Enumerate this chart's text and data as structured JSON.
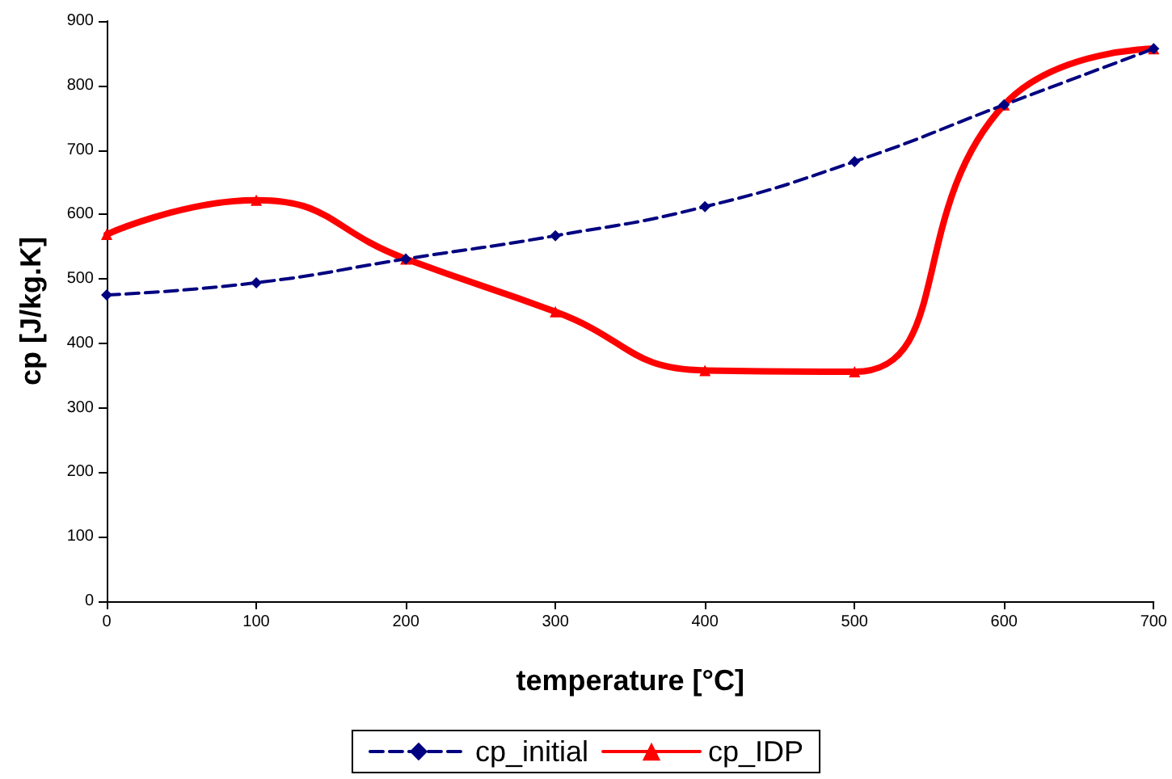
{
  "chart_data": {
    "type": "line",
    "xlabel": "temperature [°C]",
    "ylabel": "cp [J/kg.K]",
    "x": [
      0,
      100,
      200,
      300,
      400,
      500,
      600,
      700
    ],
    "xlim": [
      0,
      700
    ],
    "xticks": [
      0,
      100,
      200,
      300,
      400,
      500,
      600,
      700
    ],
    "ylim": [
      0,
      900
    ],
    "yticks": [
      0,
      100,
      200,
      300,
      400,
      500,
      600,
      700,
      800,
      900
    ],
    "grid": false,
    "legend": "bottom",
    "series": [
      {
        "name": "cp_initial",
        "color": "#000080",
        "marker": "diamond",
        "line_style": "dashed",
        "values": [
          475,
          494,
          531,
          567,
          612,
          682,
          770,
          857
        ]
      },
      {
        "name": "cp_IDP",
        "color": "#ff0000",
        "marker": "triangle",
        "line_style": "solid",
        "values": [
          569,
          622,
          531,
          449,
          358,
          356,
          770,
          857
        ]
      }
    ]
  }
}
